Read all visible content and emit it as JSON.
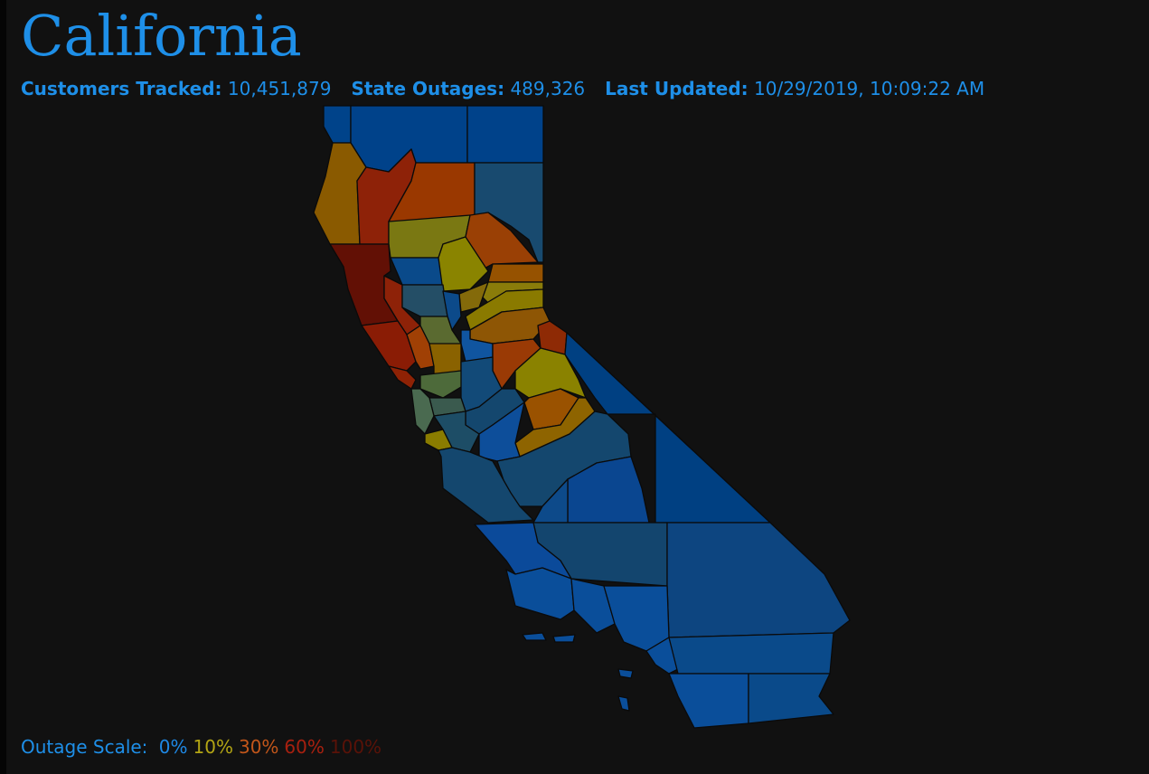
{
  "header": {
    "title": "California"
  },
  "stats": [
    {
      "label": "Customers Tracked:",
      "value": "10,451,879"
    },
    {
      "label": "State Outages:",
      "value": "489,326"
    },
    {
      "label": "Last Updated:",
      "value": "10/29/2019, 10:09:22 AM"
    }
  ],
  "scale": {
    "label": "Outage Scale:",
    "levels": [
      {
        "label": "0%",
        "color": "#1e88e5"
      },
      {
        "label": "10%",
        "color": "#b3a514"
      },
      {
        "label": "30%",
        "color": "#c2561a"
      },
      {
        "label": "60%",
        "color": "#a8200f"
      },
      {
        "label": "100%",
        "color": "#5a1208"
      }
    ]
  }
}
